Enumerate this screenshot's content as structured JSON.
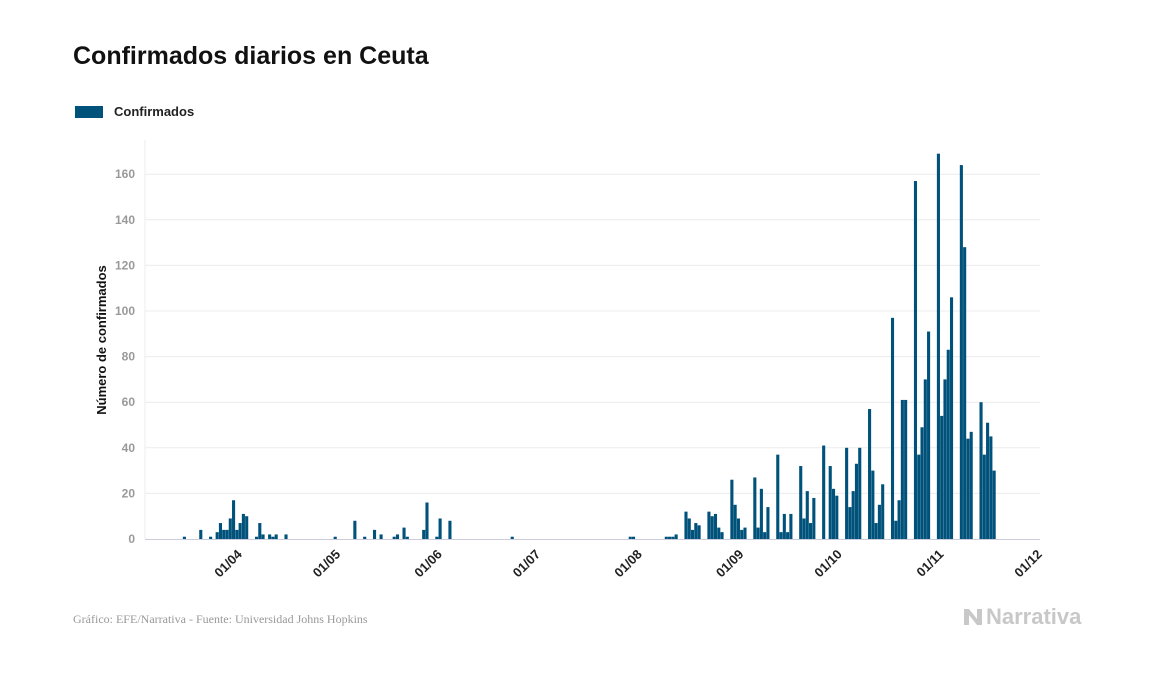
{
  "title": "Confirmados diarios en Ceuta",
  "footer": "Gráfico: EFE/Narrativa - Fuente: Universidad Johns Hopkins",
  "logo_text": "Narrativa",
  "chart_data": {
    "type": "bar",
    "title": "Confirmados diarios en Ceuta",
    "ylabel": "Número de confirmados",
    "xlabel": "",
    "ylim": [
      0,
      175
    ],
    "xlim": [
      "04/03",
      "02/12"
    ],
    "yticks": [
      0,
      20,
      40,
      60,
      80,
      100,
      120,
      140,
      160
    ],
    "xticks": [
      "01/04",
      "01/05",
      "01/06",
      "01/07",
      "01/08",
      "01/09",
      "01/10",
      "01/11",
      "01/12"
    ],
    "grid": true,
    "legend_placement": "top-left",
    "color": "#00527a",
    "series": [
      {
        "name": "Confirmados",
        "points": [
          [
            "16/03",
            1
          ],
          [
            "21/03",
            4
          ],
          [
            "24/03",
            1
          ],
          [
            "26/03",
            3
          ],
          [
            "27/03",
            7
          ],
          [
            "28/03",
            4
          ],
          [
            "29/03",
            4
          ],
          [
            "30/03",
            9
          ],
          [
            "31/03",
            17
          ],
          [
            "01/04",
            4
          ],
          [
            "02/04",
            7
          ],
          [
            "03/04",
            11
          ],
          [
            "04/04",
            10
          ],
          [
            "07/04",
            1
          ],
          [
            "08/04",
            7
          ],
          [
            "09/04",
            2
          ],
          [
            "11/04",
            2
          ],
          [
            "12/04",
            1
          ],
          [
            "13/04",
            2
          ],
          [
            "16/04",
            2
          ],
          [
            "01/05",
            1
          ],
          [
            "07/05",
            8
          ],
          [
            "10/05",
            1
          ],
          [
            "13/05",
            4
          ],
          [
            "15/05",
            2
          ],
          [
            "19/05",
            1
          ],
          [
            "20/05",
            2
          ],
          [
            "22/05",
            5
          ],
          [
            "23/05",
            1
          ],
          [
            "28/05",
            4
          ],
          [
            "29/05",
            16
          ],
          [
            "01/06",
            1
          ],
          [
            "02/06",
            9
          ],
          [
            "05/06",
            8
          ],
          [
            "24/06",
            1
          ],
          [
            "30/07",
            1
          ],
          [
            "31/07",
            1
          ],
          [
            "10/08",
            1
          ],
          [
            "11/08",
            1
          ],
          [
            "12/08",
            1
          ],
          [
            "13/08",
            2
          ],
          [
            "16/08",
            12
          ],
          [
            "17/08",
            9
          ],
          [
            "18/08",
            4
          ],
          [
            "19/08",
            7
          ],
          [
            "20/08",
            6
          ],
          [
            "23/08",
            12
          ],
          [
            "24/08",
            10
          ],
          [
            "25/08",
            11
          ],
          [
            "26/08",
            5
          ],
          [
            "27/08",
            3
          ],
          [
            "30/08",
            26
          ],
          [
            "31/08",
            15
          ],
          [
            "01/09",
            9
          ],
          [
            "02/09",
            4
          ],
          [
            "03/09",
            5
          ],
          [
            "06/09",
            27
          ],
          [
            "07/09",
            5
          ],
          [
            "08/09",
            22
          ],
          [
            "09/09",
            3
          ],
          [
            "10/09",
            14
          ],
          [
            "13/09",
            37
          ],
          [
            "14/09",
            3
          ],
          [
            "15/09",
            11
          ],
          [
            "16/09",
            3
          ],
          [
            "17/09",
            11
          ],
          [
            "20/09",
            32
          ],
          [
            "21/09",
            9
          ],
          [
            "22/09",
            21
          ],
          [
            "23/09",
            7
          ],
          [
            "24/09",
            18
          ],
          [
            "27/09",
            41
          ],
          [
            "29/09",
            32
          ],
          [
            "30/09",
            22
          ],
          [
            "01/10",
            19
          ],
          [
            "04/10",
            40
          ],
          [
            "05/10",
            14
          ],
          [
            "06/10",
            21
          ],
          [
            "07/10",
            33
          ],
          [
            "08/10",
            40
          ],
          [
            "11/10",
            57
          ],
          [
            "12/10",
            30
          ],
          [
            "13/10",
            7
          ],
          [
            "14/10",
            15
          ],
          [
            "15/10",
            24
          ],
          [
            "18/10",
            97
          ],
          [
            "19/10",
            8
          ],
          [
            "20/10",
            17
          ],
          [
            "21/10",
            61
          ],
          [
            "22/10",
            61
          ],
          [
            "25/10",
            157
          ],
          [
            "26/10",
            37
          ],
          [
            "27/10",
            49
          ],
          [
            "28/10",
            70
          ],
          [
            "29/10",
            91
          ],
          [
            "01/11",
            169
          ],
          [
            "02/11",
            54
          ],
          [
            "03/11",
            70
          ],
          [
            "04/11",
            83
          ],
          [
            "05/11",
            106
          ],
          [
            "08/11",
            164
          ],
          [
            "09/11",
            128
          ],
          [
            "10/11",
            44
          ],
          [
            "11/11",
            47
          ],
          [
            "14/11",
            60
          ],
          [
            "15/11",
            37
          ],
          [
            "16/11",
            51
          ],
          [
            "17/11",
            45
          ],
          [
            "18/11",
            30
          ]
        ]
      }
    ]
  }
}
